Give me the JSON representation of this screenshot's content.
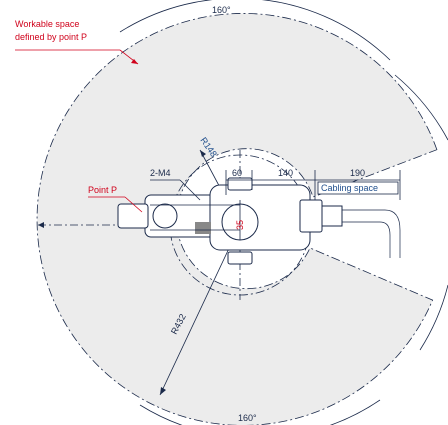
{
  "labels": {
    "workable_space_line1": "Workable space",
    "workable_space_line2": "defined by point P",
    "point_p": "Point P",
    "mount": "2-M4",
    "angle_top": "160°",
    "angle_bottom": "160°",
    "radius_outer": "R432",
    "radius_inner": "R148",
    "dim_60": "60",
    "dim_140": "140",
    "dim_190": "190",
    "dim_35": "35",
    "cabling_space": "Cabling space"
  },
  "colors": {
    "workspace_fill": "#ececec",
    "outline": "#1b2a4a",
    "label_red": "#d0021b",
    "label_blue": "#1f4e8c"
  }
}
